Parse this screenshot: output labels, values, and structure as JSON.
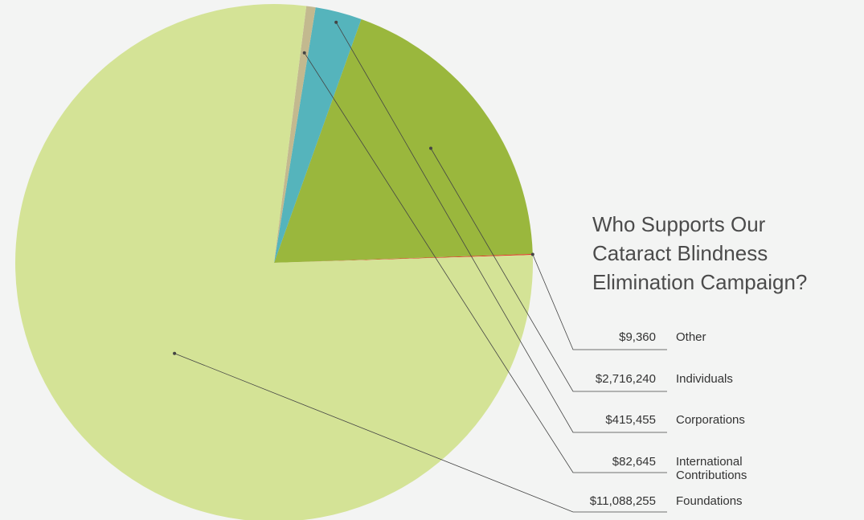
{
  "chart_data": {
    "type": "pie",
    "title": [
      "Who Supports Our",
      "Cataract Blindness",
      "Elimination Campaign?"
    ],
    "slices": [
      {
        "label": "Other",
        "amount": "$9,360",
        "value": 9360,
        "color": "#e03a26"
      },
      {
        "label": "Individuals",
        "amount": "$2,716,240",
        "value": 2716240,
        "color": "#9ab73d"
      },
      {
        "label": "Corporations",
        "amount": "$415,455",
        "value": 415455,
        "color": "#55b4bc"
      },
      {
        "label": "International\nContributions",
        "amount": "$82,645",
        "value": 82645,
        "color": "#c3b98f"
      },
      {
        "label": "Foundations",
        "amount": "$11,088,255",
        "value": 11088255,
        "color": "#d4e396"
      }
    ]
  }
}
